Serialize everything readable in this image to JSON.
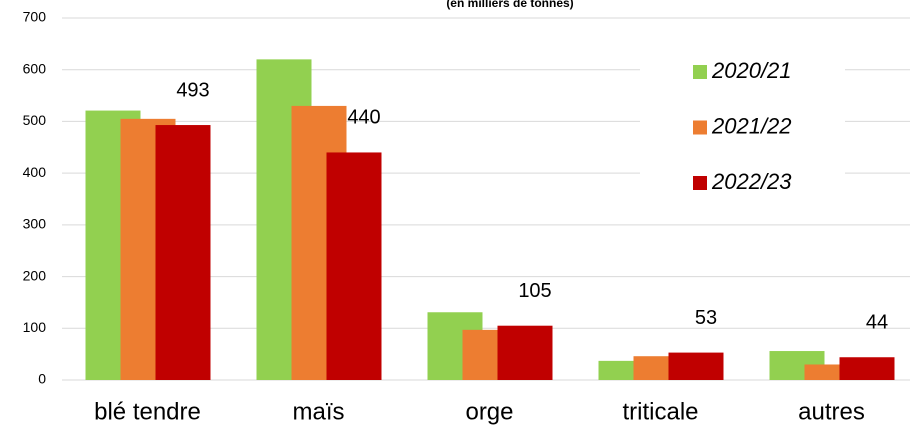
{
  "chart_data": {
    "type": "bar",
    "subtitle": "(en milliers de tonnes)",
    "categories": [
      "blé tendre",
      "maïs",
      "orge",
      "triticale",
      "autres"
    ],
    "series": [
      {
        "name": "2020/21",
        "color": "#92d050",
        "values": [
          521,
          620,
          131,
          37,
          56
        ]
      },
      {
        "name": "2021/22",
        "color": "#ed7d31",
        "values": [
          505,
          530,
          97,
          46,
          30
        ]
      },
      {
        "name": "2022/23",
        "color": "#c00000",
        "values": [
          493,
          440,
          105,
          53,
          44
        ]
      }
    ],
    "ylim": [
      0,
      700
    ],
    "yticks": [
      0,
      100,
      200,
      300,
      400,
      500,
      600,
      700
    ],
    "grid": true,
    "legend": "upper right"
  }
}
